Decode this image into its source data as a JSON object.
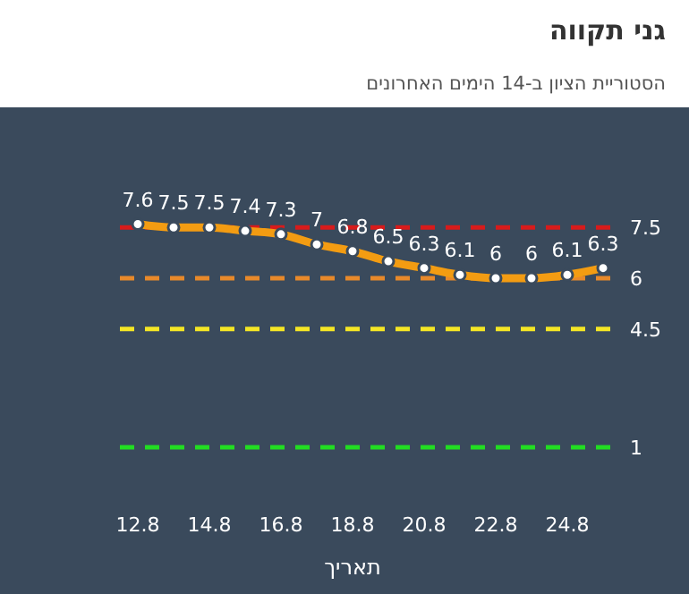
{
  "chart_data": {
    "type": "line",
    "title": "גני תקווה",
    "subtitle": "הסטוריית הציון ב-14 הימים האחרונים",
    "xlabel": "תאריך",
    "categories": [
      "12.8",
      null,
      "14.8",
      null,
      "16.8",
      null,
      "18.8",
      null,
      "20.8",
      null,
      "22.8",
      null,
      "24.8",
      null
    ],
    "series": [
      {
        "color": "#f39c12",
        "values": [
          7.6,
          7.5,
          7.5,
          7.4,
          7.3,
          7,
          6.8,
          6.5,
          6.3,
          6.1,
          6,
          6,
          6.1,
          6.3
        ]
      }
    ],
    "tick_labels": "x",
    "data_labels": true,
    "marker": "circle",
    "ref_lines": [
      {
        "axis": "y",
        "value": 7.5,
        "label": "7.5",
        "color": "#d81b1b",
        "line_style": "dashed"
      },
      {
        "axis": "y",
        "value": 6,
        "label": "6",
        "color": "#e8892a",
        "line_style": "dashed"
      },
      {
        "axis": "y",
        "value": 4.5,
        "label": "4.5",
        "color": "#f5e625",
        "line_style": "dashed"
      },
      {
        "axis": "y",
        "value": 1,
        "label": "1",
        "color": "#22dd22",
        "line_style": "dashed"
      }
    ]
  }
}
